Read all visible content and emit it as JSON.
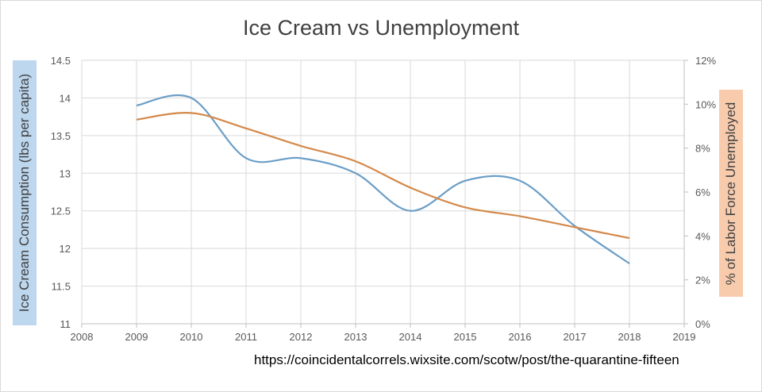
{
  "chart_data": {
    "type": "line",
    "title": "Ice Cream vs Unemployment",
    "ylabel_left": "Ice Cream Consumption (lbs per capita)",
    "ylabel_right": "% of Labor Force Unemployed",
    "xlim": [
      2008,
      2019
    ],
    "ylim_left": [
      11,
      14.5
    ],
    "ylim_right": [
      0,
      12
    ],
    "x_ticks": [
      "2008",
      "2009",
      "2010",
      "2011",
      "2012",
      "2013",
      "2014",
      "2015",
      "2016",
      "2017",
      "2018",
      "2019"
    ],
    "y_left_ticks": [
      "11",
      "11.5",
      "12",
      "12.5",
      "13",
      "13.5",
      "14",
      "14.5"
    ],
    "y_right_ticks": [
      "0%",
      "2%",
      "4%",
      "6%",
      "8%",
      "10%",
      "12%"
    ],
    "grid": "horizontal",
    "series": [
      {
        "axis": "left",
        "color": "#6b9ec7",
        "x": [
          2009,
          2010,
          2011,
          2012,
          2013,
          2014,
          2015,
          2016,
          2017,
          2018
        ],
        "values": [
          13.9,
          14.0,
          13.2,
          13.2,
          13.0,
          12.5,
          12.9,
          12.9,
          12.3,
          11.8
        ]
      },
      {
        "axis": "right",
        "color": "#d4894a",
        "x": [
          2009,
          2010,
          2011,
          2012,
          2013,
          2014,
          2015,
          2016,
          2017,
          2018
        ],
        "values": [
          9.3,
          9.6,
          8.9,
          8.1,
          7.4,
          6.2,
          5.3,
          4.9,
          4.4,
          3.9
        ]
      }
    ]
  },
  "source_url": "https://coincidentalcorrels.wixsite.com/scotw/post/the-quarantine-fifteen"
}
